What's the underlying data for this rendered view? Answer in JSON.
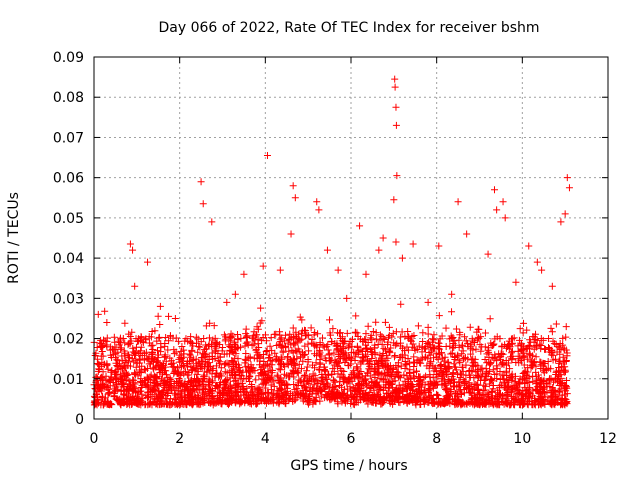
{
  "chart_data": {
    "type": "scatter",
    "title": "Day 066 of 2022, Rate Of TEC Index for receiver bshm",
    "xlabel": "GPS time / hours",
    "ylabel": "ROTI / TECUs",
    "xlim": [
      0,
      12
    ],
    "ylim": [
      0,
      0.09
    ],
    "x_ticks": [
      "0",
      "2",
      "4",
      "6",
      "8",
      "10",
      "12"
    ],
    "y_ticks": [
      "0",
      "0.01",
      "0.02",
      "0.03",
      "0.04",
      "0.05",
      "0.06",
      "0.07",
      "0.08",
      "0.09"
    ],
    "grid": true,
    "marker": "plus",
    "color": "#ff0000",
    "series": [
      {
        "x": [
          4.05,
          7.02,
          7.03,
          7.05,
          7.06,
          7.0,
          7.07,
          7.05,
          2.5,
          2.55,
          4.65,
          4.7,
          5.2,
          5.25,
          9.35,
          9.4,
          10.35,
          11.05,
          11.1,
          11.0,
          9.55,
          9.6,
          4.6,
          6.2,
          8.5,
          0.85,
          0.9,
          1.25,
          2.75,
          3.5,
          5.7,
          6.65,
          7.45,
          8.05,
          10.15,
          10.9,
          1.9,
          3.95,
          5.45,
          8.7,
          9.2,
          6.75,
          0.1,
          0.3,
          0.95,
          1.55,
          3.1,
          3.3,
          4.35,
          5.9,
          6.35,
          7.2,
          7.8,
          8.35,
          9.85,
          10.45,
          10.7
        ],
        "y": [
          0.0655,
          0.0845,
          0.0825,
          0.0775,
          0.073,
          0.0545,
          0.0605,
          0.044,
          0.059,
          0.0535,
          0.058,
          0.055,
          0.054,
          0.052,
          0.057,
          0.052,
          0.039,
          0.06,
          0.0575,
          0.051,
          0.054,
          0.05,
          0.046,
          0.048,
          0.054,
          0.0435,
          0.042,
          0.039,
          0.049,
          0.036,
          0.037,
          0.042,
          0.0435,
          0.043,
          0.043,
          0.049,
          0.025,
          0.038,
          0.042,
          0.046,
          0.041,
          0.045,
          0.026,
          0.024,
          0.033,
          0.028,
          0.029,
          0.031,
          0.037,
          0.03,
          0.036,
          0.04,
          0.029,
          0.031,
          0.034,
          0.037,
          0.033
        ],
        "color": "#ff0000"
      }
    ]
  }
}
